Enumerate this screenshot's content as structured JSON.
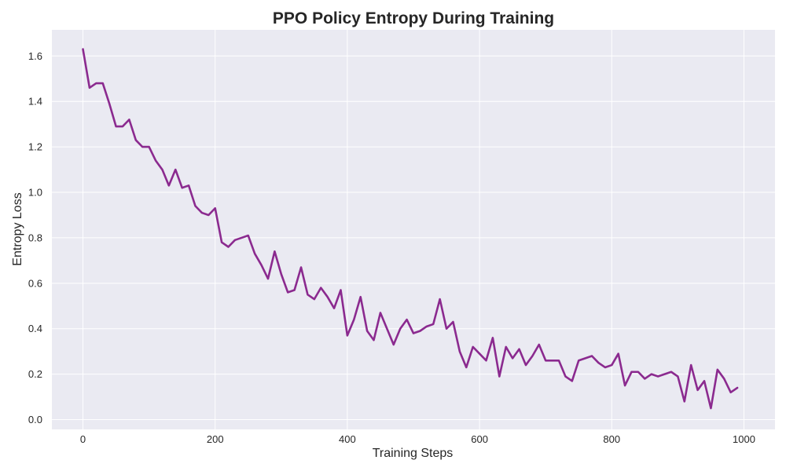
{
  "chart_data": {
    "type": "line",
    "title": "PPO Policy Entropy During Training",
    "xlabel": "Training Steps",
    "ylabel": "Entropy Loss",
    "xlim": [
      -47,
      1047
    ],
    "ylim": [
      -0.043,
      1.715
    ],
    "xticks": [
      0,
      200,
      400,
      600,
      800,
      1000
    ],
    "yticks": [
      0.0,
      0.2,
      0.4,
      0.6,
      0.8,
      1.0,
      1.2,
      1.4,
      1.6
    ],
    "grid": true,
    "background_color": "#eaeaf2",
    "grid_color": "#ffffff",
    "series": [
      {
        "color": "#8b2a8f",
        "x": [
          0,
          10,
          20,
          30,
          40,
          50,
          60,
          70,
          80,
          90,
          100,
          110,
          120,
          130,
          140,
          150,
          160,
          170,
          180,
          190,
          200,
          210,
          220,
          230,
          240,
          250,
          260,
          270,
          280,
          290,
          300,
          310,
          320,
          330,
          340,
          350,
          360,
          370,
          380,
          390,
          400,
          410,
          420,
          430,
          440,
          450,
          460,
          470,
          480,
          490,
          500,
          510,
          520,
          530,
          540,
          550,
          560,
          570,
          580,
          590,
          600,
          610,
          620,
          630,
          640,
          650,
          660,
          670,
          680,
          690,
          700,
          710,
          720,
          730,
          740,
          750,
          760,
          770,
          780,
          790,
          800,
          810,
          820,
          830,
          840,
          850,
          860,
          870,
          880,
          890,
          900,
          910,
          920,
          930,
          940,
          950,
          960,
          970,
          980,
          990
        ],
        "values": [
          1.63,
          1.46,
          1.48,
          1.48,
          1.39,
          1.29,
          1.29,
          1.32,
          1.23,
          1.2,
          1.2,
          1.14,
          1.1,
          1.03,
          1.1,
          1.02,
          1.03,
          0.94,
          0.91,
          0.9,
          0.93,
          0.78,
          0.76,
          0.79,
          0.8,
          0.81,
          0.73,
          0.68,
          0.62,
          0.74,
          0.64,
          0.56,
          0.57,
          0.67,
          0.55,
          0.53,
          0.58,
          0.54,
          0.49,
          0.57,
          0.37,
          0.44,
          0.54,
          0.39,
          0.35,
          0.47,
          0.4,
          0.33,
          0.4,
          0.44,
          0.38,
          0.39,
          0.41,
          0.42,
          0.53,
          0.4,
          0.43,
          0.3,
          0.23,
          0.32,
          0.29,
          0.26,
          0.36,
          0.19,
          0.32,
          0.27,
          0.31,
          0.24,
          0.28,
          0.33,
          0.26,
          0.26,
          0.26,
          0.19,
          0.17,
          0.26,
          0.27,
          0.28,
          0.25,
          0.23,
          0.24,
          0.29,
          0.15,
          0.21,
          0.21,
          0.18,
          0.2,
          0.19,
          0.2,
          0.21,
          0.19,
          0.08,
          0.24,
          0.13,
          0.17,
          0.05,
          0.22,
          0.18,
          0.12,
          0.14
        ]
      }
    ]
  }
}
